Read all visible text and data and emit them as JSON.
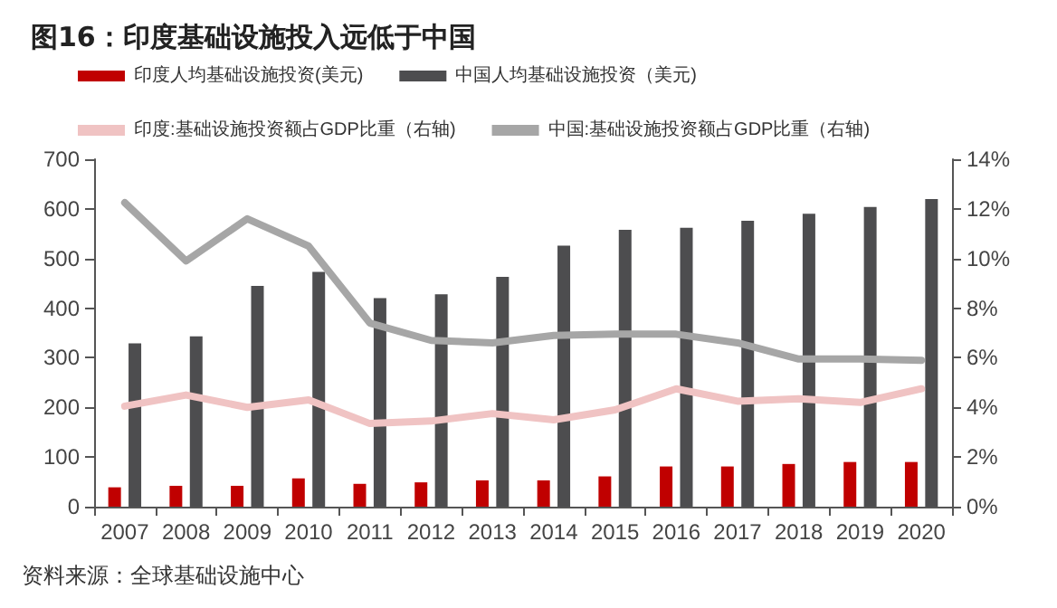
{
  "chart_data": {
    "type": "bar",
    "title": "图16：印度基础设施投入远低于中国",
    "categories": [
      "2007",
      "2008",
      "2009",
      "2010",
      "2011",
      "2012",
      "2013",
      "2014",
      "2015",
      "2016",
      "2017",
      "2018",
      "2019",
      "2020"
    ],
    "series": [
      {
        "name": "印度人均基础设施投资(美元)",
        "type": "bar",
        "color": "#c00000",
        "values": [
          39,
          42,
          42,
          57,
          46,
          49,
          53,
          53,
          61,
          81,
          81,
          86,
          90,
          90
        ]
      },
      {
        "name": "中国人均基础设施投资（美元)",
        "type": "bar",
        "color": "#4d4d4f",
        "values": [
          329,
          343,
          445,
          473,
          420,
          428,
          463,
          526,
          558,
          562,
          576,
          590,
          604,
          620
        ]
      },
      {
        "name": "印度:基础设施投资额占GDP比重（右轴)",
        "type": "line",
        "axis": "y2",
        "color": "#f0c3c3",
        "values": [
          4.05,
          4.5,
          4.0,
          4.3,
          3.35,
          3.45,
          3.75,
          3.5,
          3.9,
          4.75,
          4.25,
          4.35,
          4.2,
          4.75
        ]
      },
      {
        "name": "中国:基础设施投资额占GDP比重（右轴)",
        "type": "line",
        "axis": "y2",
        "color": "#a6a6a6",
        "values": [
          12.25,
          9.9,
          11.6,
          10.5,
          7.4,
          6.7,
          6.6,
          6.9,
          6.95,
          6.95,
          6.6,
          5.95,
          5.95,
          5.9
        ]
      }
    ],
    "ylim": [
      0,
      700
    ],
    "yticks": [
      0,
      100,
      200,
      300,
      400,
      500,
      600,
      700
    ],
    "y2lim": [
      0,
      14
    ],
    "y2ticks": [
      {
        "value": 0,
        "label": "0%"
      },
      {
        "value": 2,
        "label": "2%"
      },
      {
        "value": 4,
        "label": "4%"
      },
      {
        "value": 6,
        "label": "6%"
      },
      {
        "value": 8,
        "label": "8%"
      },
      {
        "value": 10,
        "label": "10%"
      },
      {
        "value": 12,
        "label": "12%"
      },
      {
        "value": 14,
        "label": "14%"
      }
    ],
    "legend": "top",
    "marker": "none",
    "line_style": "solid",
    "annotations": [
      "资料来源：全球基础设施中心"
    ]
  }
}
